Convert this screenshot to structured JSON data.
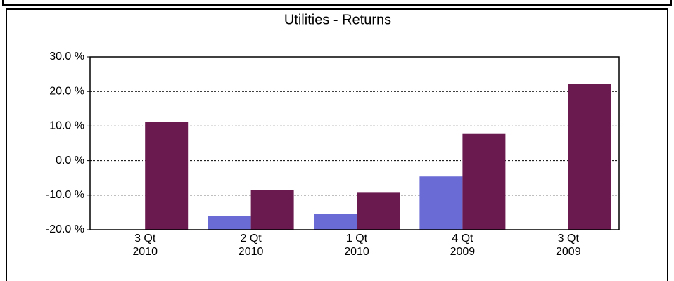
{
  "chart_data": {
    "type": "bar",
    "title": "Utilities  -  Returns",
    "categories": [
      "3 Qt\n2010",
      "2 Qt\n2010",
      "1 Qt\n2010",
      "4 Qt\n2009",
      "3 Qt\n2009"
    ],
    "series": [
      {
        "color": "#6b6bd6",
        "values": [
          null,
          -16.1,
          -15.5,
          -4.6,
          null
        ]
      },
      {
        "color": "#6b1a4f",
        "values": [
          11.1,
          -8.6,
          -9.3,
          7.7,
          22.2
        ]
      }
    ],
    "ylim": [
      -20,
      30
    ],
    "yticks": [
      {
        "value": -20,
        "label": "-20.0 %"
      },
      {
        "value": -10,
        "label": "-10.0 %"
      },
      {
        "value": 0,
        "label": "0.0 %"
      },
      {
        "value": 10,
        "label": "10.0 %"
      },
      {
        "value": 20,
        "label": "20.0 %"
      },
      {
        "value": 30,
        "label": "30.0 %"
      }
    ],
    "grid": true
  }
}
